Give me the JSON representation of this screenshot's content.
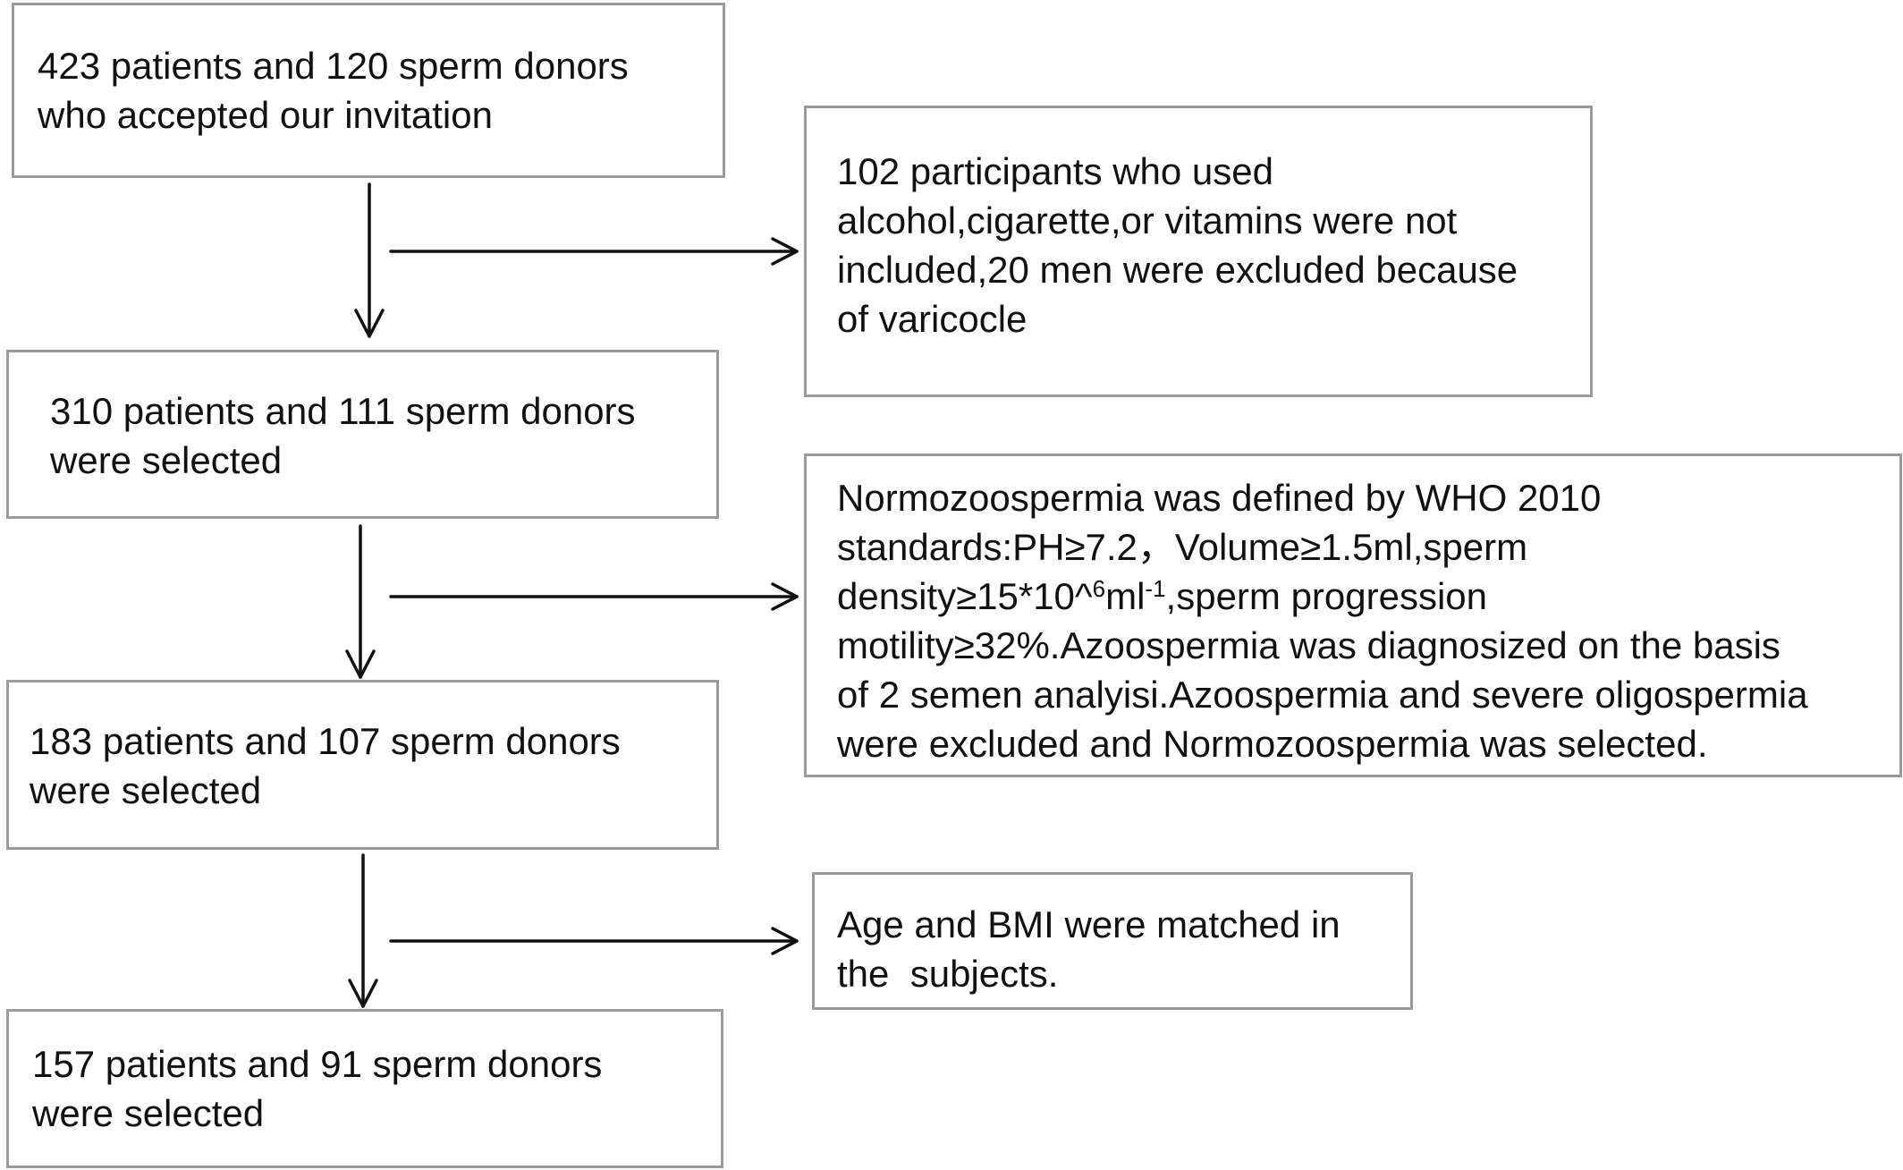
{
  "boxes": {
    "step1": {
      "line1": "423 patients and 120 sperm donors",
      "line2": "who accepted our invitation"
    },
    "step2": {
      "line1": "310 patients and 111 sperm donors",
      "line2": "were selected"
    },
    "step3": {
      "line1": "183 patients and 107 sperm donors",
      "line2": "were selected"
    },
    "step4": {
      "line1": "157 patients and 91 sperm donors",
      "line2": "were selected"
    },
    "excl1": {
      "line1": "102 participants who used",
      "line2": "alcohol,cigarette,or vitamins were not",
      "line3": "included,20 men were excluded because",
      "line4": "of varicocle"
    },
    "excl2": {
      "line1": "Normozoospermia was defined by WHO 2010",
      "line2": "standards:PH≥7.2，Volume≥1.5ml,sperm",
      "line3_a": "density≥15*10^",
      "line3_sup1": "6",
      "line3_b": "ml",
      "line3_sup2": "-1",
      "line3_c": ",sperm progression",
      "line4": "motility≥32%.Azoospermia was diagnosized on the basis",
      "line5": "of 2 semen analyisi.Azoospermia and severe oligospermia",
      "line6": "were excluded and Normozoospermia was selected."
    },
    "excl3": {
      "line1": "Age and BMI were matched in",
      "line2": "the  subjects."
    }
  }
}
